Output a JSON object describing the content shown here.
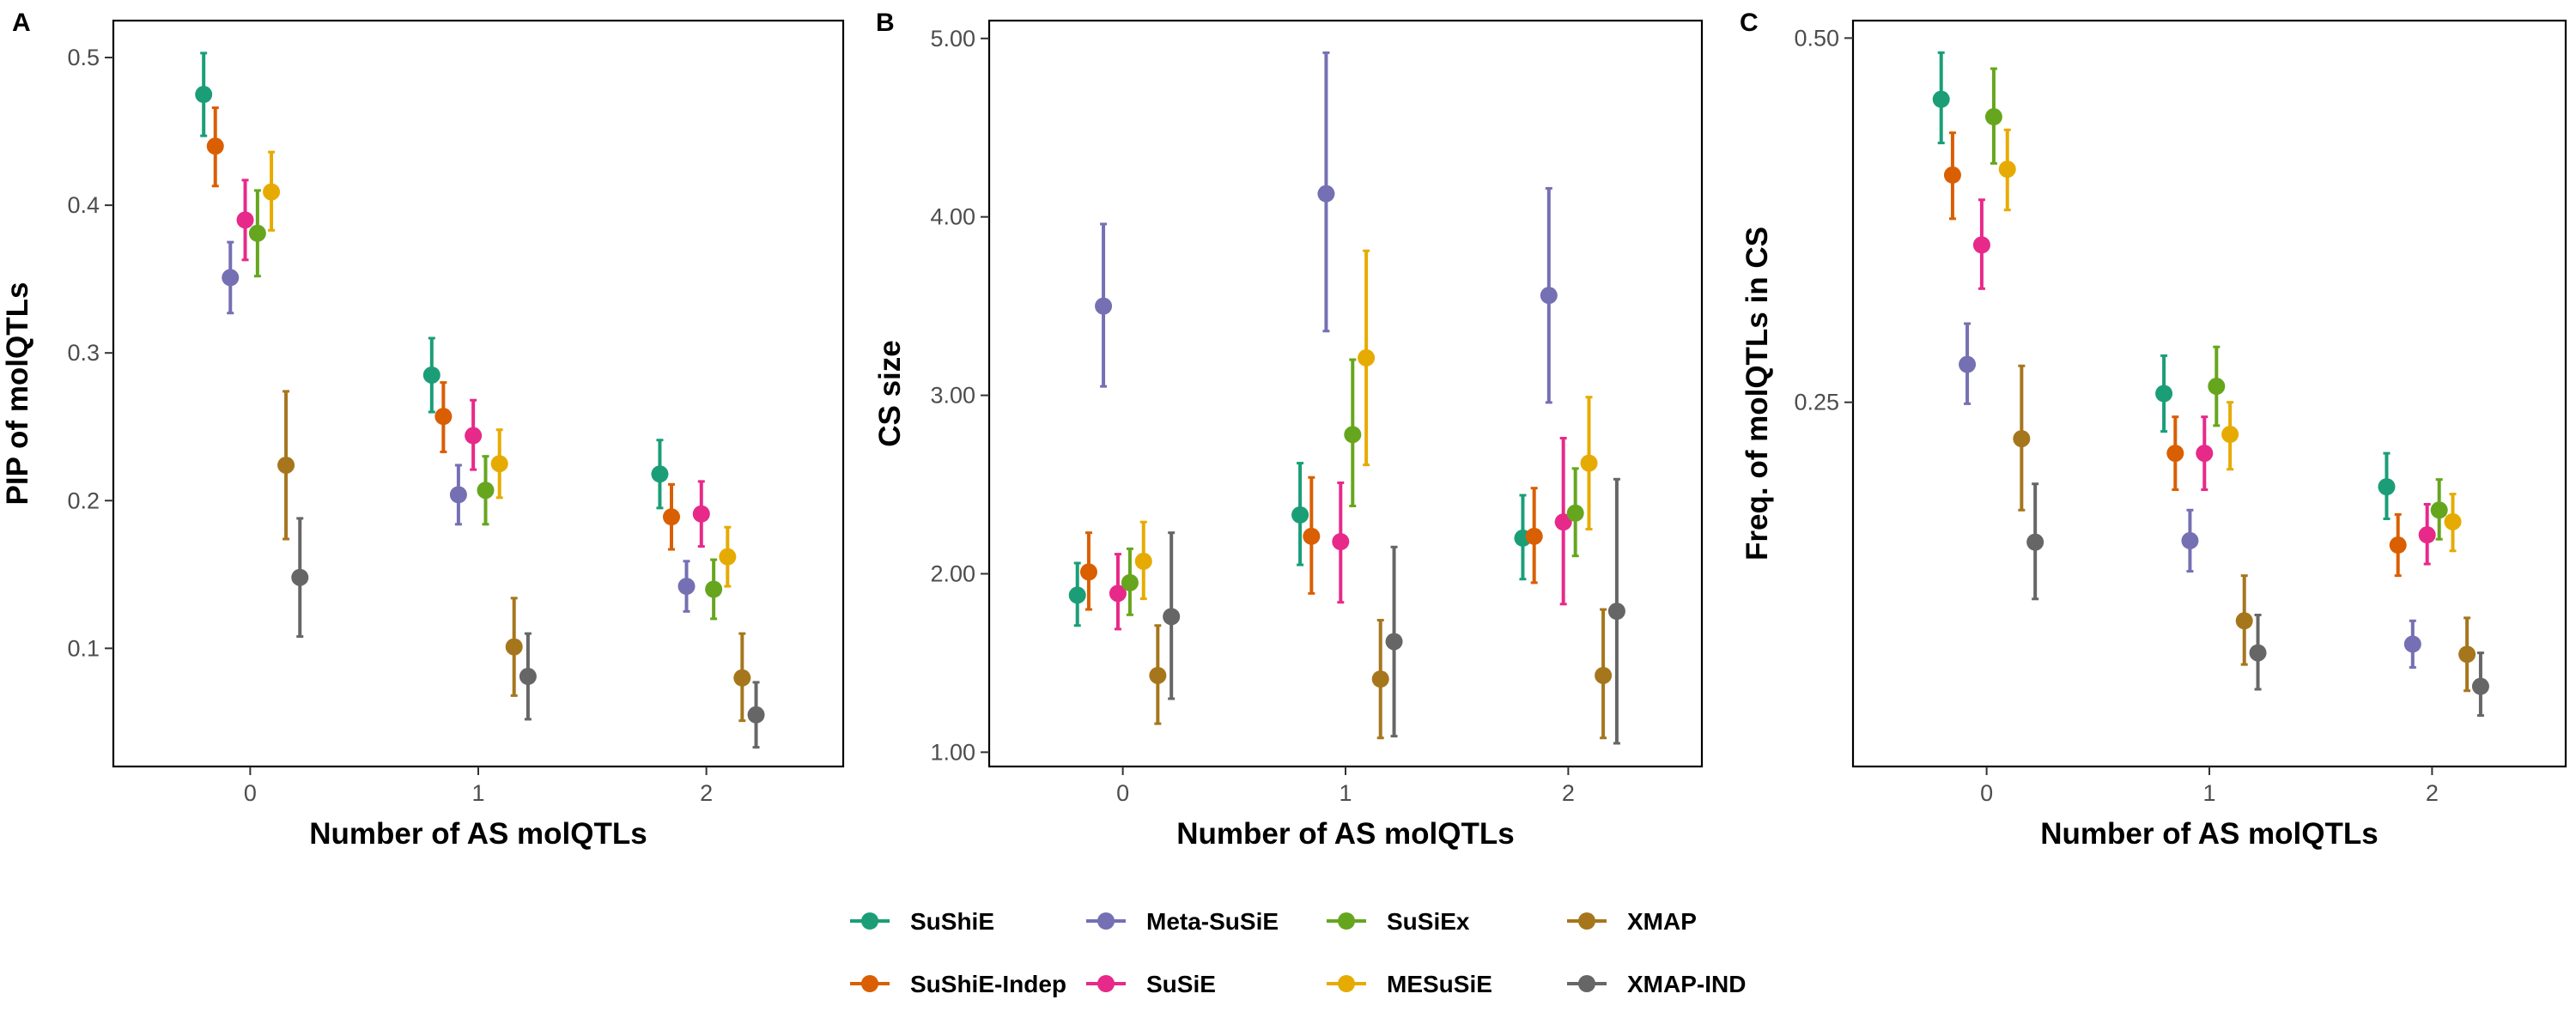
{
  "legend": {
    "items": [
      {
        "name": "SuShiE",
        "color": "#1B9E77"
      },
      {
        "name": "SuShiE-Indep",
        "color": "#D95F02"
      },
      {
        "name": "Meta-SuSiE",
        "color": "#7570B3"
      },
      {
        "name": "SuSiE",
        "color": "#E7298A"
      },
      {
        "name": "SuSiEx",
        "color": "#66A61E"
      },
      {
        "name": "MESuSiE",
        "color": "#E6AB02"
      },
      {
        "name": "XMAP",
        "color": "#A6761D"
      },
      {
        "name": "XMAP-IND",
        "color": "#666666"
      }
    ]
  },
  "chart_data": [
    {
      "type": "scatter",
      "panel_label": "A",
      "xlabel": "Number of AS molQTLs",
      "ylabel": "PIP of molQTLs",
      "categories": [
        "0",
        "1",
        "2"
      ],
      "xlim": [
        -0.6,
        2.6
      ],
      "ylim": [
        0.02,
        0.525
      ],
      "yticks": [
        0.1,
        0.2,
        0.3,
        0.4,
        0.5
      ],
      "ytick_labels": [
        "0.1",
        "0.2",
        "0.3",
        "0.4",
        "0.5"
      ],
      "grid": false,
      "series": [
        {
          "name": "SuShiE",
          "values": [
            0.475,
            0.285,
            0.218
          ],
          "lower": [
            0.447,
            0.26,
            0.195
          ],
          "upper": [
            0.503,
            0.31,
            0.241
          ]
        },
        {
          "name": "SuShiE-Indep",
          "values": [
            0.44,
            0.257,
            0.189
          ],
          "lower": [
            0.413,
            0.233,
            0.167
          ],
          "upper": [
            0.466,
            0.28,
            0.211
          ]
        },
        {
          "name": "Meta-SuSiE",
          "values": [
            0.351,
            0.204,
            0.142
          ],
          "lower": [
            0.327,
            0.184,
            0.125
          ],
          "upper": [
            0.375,
            0.224,
            0.159
          ]
        },
        {
          "name": "SuSiE",
          "values": [
            0.39,
            0.244,
            0.191
          ],
          "lower": [
            0.363,
            0.221,
            0.169
          ],
          "upper": [
            0.417,
            0.268,
            0.213
          ]
        },
        {
          "name": "SuSiEx",
          "values": [
            0.381,
            0.207,
            0.14
          ],
          "lower": [
            0.352,
            0.184,
            0.12
          ],
          "upper": [
            0.41,
            0.23,
            0.16
          ]
        },
        {
          "name": "MESuSiE",
          "values": [
            0.409,
            0.225,
            0.162
          ],
          "lower": [
            0.383,
            0.202,
            0.142
          ],
          "upper": [
            0.436,
            0.248,
            0.182
          ]
        },
        {
          "name": "XMAP",
          "values": [
            0.224,
            0.101,
            0.08
          ],
          "lower": [
            0.174,
            0.068,
            0.051
          ],
          "upper": [
            0.274,
            0.134,
            0.11
          ]
        },
        {
          "name": "XMAP-IND",
          "values": [
            0.148,
            0.081,
            0.055
          ],
          "lower": [
            0.108,
            0.052,
            0.033
          ],
          "upper": [
            0.188,
            0.11,
            0.077
          ]
        }
      ]
    },
    {
      "type": "scatter",
      "panel_label": "B",
      "xlabel": "Number of AS molQTLs",
      "ylabel": "CS size",
      "categories": [
        "0",
        "1",
        "2"
      ],
      "xlim": [
        -0.6,
        2.6
      ],
      "ylim": [
        0.92,
        5.1
      ],
      "yticks": [
        1,
        2,
        3,
        4,
        5
      ],
      "ytick_labels": [
        "1.00",
        "2.00",
        "3.00",
        "4.00",
        "5.00"
      ],
      "grid": false,
      "series": [
        {
          "name": "SuShiE",
          "values": [
            1.88,
            2.33,
            2.2
          ],
          "lower": [
            1.71,
            2.05,
            1.97
          ],
          "upper": [
            2.06,
            2.62,
            2.44
          ]
        },
        {
          "name": "SuShiE-Indep",
          "values": [
            2.01,
            2.21,
            2.21
          ],
          "lower": [
            1.8,
            1.89,
            1.95
          ],
          "upper": [
            2.23,
            2.54,
            2.48
          ]
        },
        {
          "name": "Meta-SuSiE",
          "values": [
            3.5,
            4.13,
            3.56
          ],
          "lower": [
            3.05,
            3.36,
            2.96
          ],
          "upper": [
            3.96,
            4.92,
            4.16
          ]
        },
        {
          "name": "SuSiE",
          "values": [
            1.89,
            2.18,
            2.29
          ],
          "lower": [
            1.69,
            1.84,
            1.83
          ],
          "upper": [
            2.11,
            2.51,
            2.76
          ]
        },
        {
          "name": "SuSiEx",
          "values": [
            1.95,
            2.78,
            2.34
          ],
          "lower": [
            1.77,
            2.38,
            2.1
          ],
          "upper": [
            2.14,
            3.2,
            2.59
          ]
        },
        {
          "name": "MESuSiE",
          "values": [
            2.07,
            3.21,
            2.62
          ],
          "lower": [
            1.86,
            2.61,
            2.25
          ],
          "upper": [
            2.29,
            3.81,
            2.99
          ]
        },
        {
          "name": "XMAP",
          "values": [
            1.43,
            1.41,
            1.43
          ],
          "lower": [
            1.16,
            1.08,
            1.08
          ],
          "upper": [
            1.71,
            1.74,
            1.8
          ]
        },
        {
          "name": "XMAP-IND",
          "values": [
            1.76,
            1.62,
            1.79
          ],
          "lower": [
            1.3,
            1.09,
            1.05
          ],
          "upper": [
            2.23,
            2.15,
            2.53
          ]
        }
      ]
    },
    {
      "type": "scatter",
      "panel_label": "C",
      "xlabel": "Number of AS molQTLs",
      "ylabel": "Freq. of molQTLs in CS",
      "categories": [
        "0",
        "1",
        "2"
      ],
      "xlim": [
        -0.6,
        2.6
      ],
      "ylim": [
        0.0,
        0.512
      ],
      "yticks": [
        0.25,
        0.5
      ],
      "ytick_labels": [
        "0.25",
        "0.50"
      ],
      "grid": false,
      "series": [
        {
          "name": "SuShiE",
          "values": [
            0.458,
            0.256,
            0.192
          ],
          "lower": [
            0.428,
            0.23,
            0.17
          ],
          "upper": [
            0.49,
            0.282,
            0.215
          ]
        },
        {
          "name": "SuShiE-Indep",
          "values": [
            0.406,
            0.215,
            0.152
          ],
          "lower": [
            0.376,
            0.19,
            0.131
          ],
          "upper": [
            0.435,
            0.24,
            0.173
          ]
        },
        {
          "name": "Meta-SuSiE",
          "values": [
            0.276,
            0.155,
            0.084
          ],
          "lower": [
            0.249,
            0.134,
            0.068
          ],
          "upper": [
            0.304,
            0.176,
            0.1
          ]
        },
        {
          "name": "SuSiE",
          "values": [
            0.358,
            0.215,
            0.159
          ],
          "lower": [
            0.328,
            0.19,
            0.139
          ],
          "upper": [
            0.389,
            0.24,
            0.18
          ]
        },
        {
          "name": "SuSiEx",
          "values": [
            0.446,
            0.261,
            0.176
          ],
          "lower": [
            0.414,
            0.234,
            0.156
          ],
          "upper": [
            0.479,
            0.288,
            0.197
          ]
        },
        {
          "name": "MESuSiE",
          "values": [
            0.41,
            0.228,
            0.168
          ],
          "lower": [
            0.382,
            0.204,
            0.148
          ],
          "upper": [
            0.437,
            0.25,
            0.187
          ]
        },
        {
          "name": "XMAP",
          "values": [
            0.225,
            0.1,
            0.077
          ],
          "lower": [
            0.176,
            0.07,
            0.052
          ],
          "upper": [
            0.275,
            0.131,
            0.102
          ]
        },
        {
          "name": "XMAP-IND",
          "values": [
            0.154,
            0.078,
            0.055
          ],
          "lower": [
            0.115,
            0.053,
            0.035
          ],
          "upper": [
            0.194,
            0.104,
            0.078
          ]
        }
      ]
    }
  ]
}
